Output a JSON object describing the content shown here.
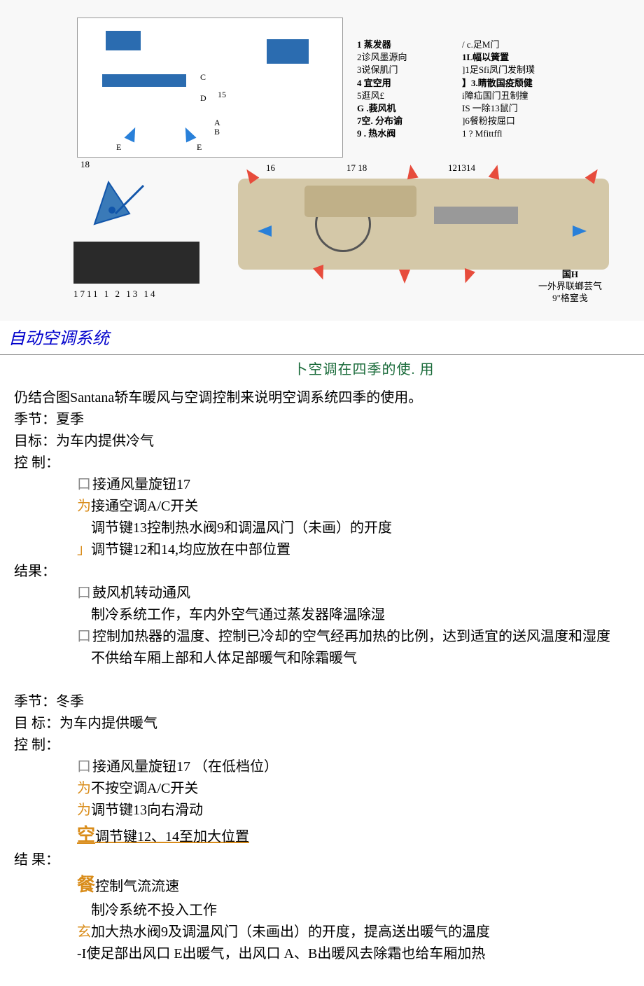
{
  "diagram": {
    "legend_col1": [
      {
        "b": true,
        "t": "1 蒸发器"
      },
      {
        "b": false,
        "t": "2诊风墨源向"
      },
      {
        "b": false,
        "t": "3说保肌门"
      },
      {
        "b": true,
        "t": "4 宜空用"
      },
      {
        "b": false,
        "t": "5逛风£"
      },
      {
        "b": true,
        "t": "G .莪风机"
      },
      {
        "b": true,
        "t": "7空. 分布谕"
      },
      {
        "b": true,
        "t": "9 . 热水阀"
      }
    ],
    "legend_col2": [
      {
        "b": false,
        "t": "/ c.足M门"
      },
      {
        "b": true,
        "t": "1L幅以簧置"
      },
      {
        "b": false,
        "t": "]1足Sfi凤门发制璞"
      },
      {
        "b": true,
        "t": "】3.睛散国疫颓健"
      },
      {
        "b": false,
        "t": "i障疝国门丑制撞"
      },
      {
        "b": false,
        "t": "IS 一除13鼠门"
      },
      {
        "b": false,
        "t": "]6餐粉按屈口"
      },
      {
        "b": false,
        "t": "1 ? Mfittffl"
      }
    ],
    "panel_nums": "1711 1 2   13    14",
    "dash_top_labels": {
      "a": "16",
      "b": "17 18",
      "c": "121314"
    },
    "dash_right": {
      "l1": "国H",
      "l2": "一外界联螂芸气",
      "l3": "9\"格窒戋"
    },
    "dl_num18": "18",
    "diag_letters": {
      "c": "C",
      "d": "D",
      "a": "A",
      "b": "B",
      "e1": "E",
      "e2": "E",
      "n15": "15"
    }
  },
  "heading": "自动空调系统",
  "subhead": "卜空调在四季的使. 用",
  "intro": "仍结合图Santana轿车暖风与空调控制来说明空调系统四季的使用。",
  "summer": {
    "season": "季节：夏季",
    "goal": "目标：为车内提供冷气",
    "ctrl_label": "控 制：",
    "ctrl": [
      {
        "p": "口",
        "pc": "box",
        "t": "接通风量旋钮17"
      },
      {
        "p": "为",
        "pc": "orange",
        "t": "接通空调A/C开关"
      },
      {
        "p": "",
        "pc": "",
        "t": "调节键13控制热水阀9和调温风门（未画）的开度"
      },
      {
        "p": "」",
        "pc": "orange",
        "t": "调节键12和14,均应放在中部位置"
      }
    ],
    "res_label": "结果：",
    "res": [
      {
        "p": "口",
        "pc": "box",
        "t": "鼓风机转动通风"
      },
      {
        "p": "",
        "pc": "",
        "t": "制冷系统工作，车内外空气通过蒸发器降温除湿"
      },
      {
        "p": "口",
        "pc": "box",
        "t": "控制加热器的温度、控制已冷却的空气经再加热的比例，达到适宜的送风温度和湿度"
      },
      {
        "p": "",
        "pc": "",
        "t": "不供给车厢上部和人体足部暖气和除霜暖气"
      }
    ]
  },
  "winter": {
    "season": "季节：冬季",
    "goal": "目 标：为车内提供暖气",
    "ctrl_label": "控 制：",
    "ctrl": [
      {
        "p": "口",
        "pc": "box",
        "t": "接通风量旋钮17 （在低档位）"
      },
      {
        "p": "为",
        "pc": "orange",
        "t": "不按空调A/C开关"
      },
      {
        "p": "为",
        "pc": "orange",
        "t": "调节键13向右滑动"
      },
      {
        "p": "空",
        "pc": "obig-u",
        "t": "调节键12、14至加大位置"
      }
    ],
    "res_label": "结 果：",
    "res": [
      {
        "p": "餐",
        "pc": "obig",
        "t": "控制气流流速"
      },
      {
        "p": "",
        "pc": "",
        "t": "制冷系统不投入工作"
      },
      {
        "p": "玄",
        "pc": "orange",
        "t": "加大热水阀9及调温风门（未画出）的开度，提高送出暖气的温度"
      },
      {
        "p": "-I",
        "pc": "plain",
        "t": "使足部出风口 E出暖气，出风口 A、B出暖风去除霜也给车厢加热"
      }
    ]
  },
  "colors": {
    "heading": "#0000cc",
    "subhead": "#1a6b3a",
    "orange": "#d98c1a",
    "diagram_blue": "#2b6cb0",
    "diagram_red": "#e74c3c",
    "dash_tan": "#d4c8a8"
  }
}
